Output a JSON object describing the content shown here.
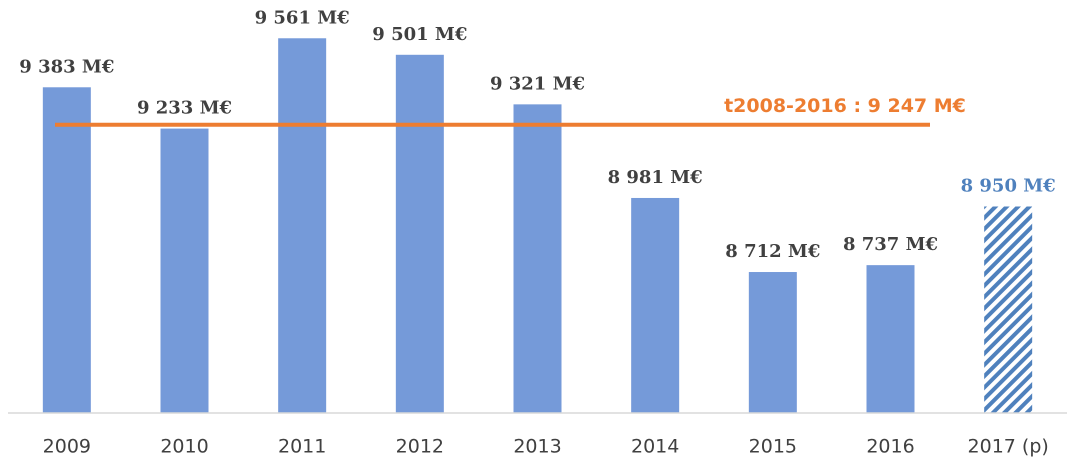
{
  "chart_data": {
    "type": "bar",
    "categories": [
      "2009",
      "2010",
      "2011",
      "2012",
      "2013",
      "2014",
      "2015",
      "2016",
      "2017 (p)"
    ],
    "values": [
      9383,
      9233,
      9561,
      9501,
      9321,
      8981,
      8712,
      8737,
      8950
    ],
    "value_labels": [
      "9 383 M€",
      "9 233 M€",
      "9 561 M€",
      "9 501 M€",
      "9 321 M€",
      "8 981 M€",
      "8 712 M€",
      "8 737 M€",
      "8 950 M€"
    ],
    "color": "#759ad9",
    "hatch": [
      false,
      false,
      false,
      false,
      false,
      false,
      false,
      false,
      true
    ],
    "hatch_color": "#4f81bd",
    "label_color": "#404040",
    "ylim": [
      8200,
      9700
    ],
    "reference_line": {
      "value": 9247,
      "label": "t2008-2016  : 9 247 M€",
      "color": "#ed7d31"
    }
  }
}
